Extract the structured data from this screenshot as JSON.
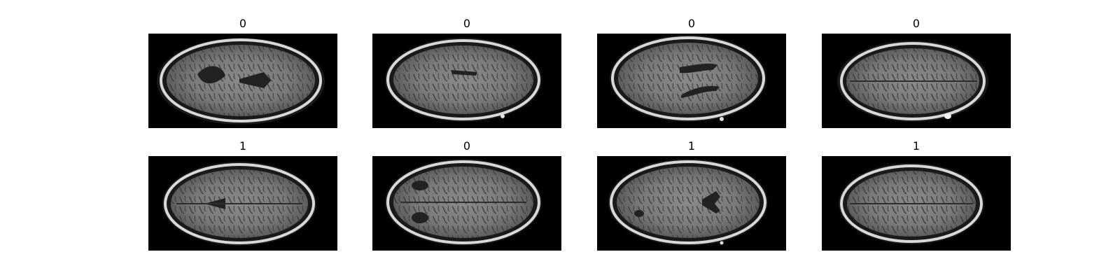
{
  "figure": {
    "panels": [
      {
        "label": "0",
        "image": "axial-brain-mri-slice"
      },
      {
        "label": "0",
        "image": "axial-brain-mri-slice"
      },
      {
        "label": "0",
        "image": "axial-brain-mri-slice"
      },
      {
        "label": "0",
        "image": "axial-brain-mri-slice"
      },
      {
        "label": "1",
        "image": "axial-brain-mri-slice"
      },
      {
        "label": "0",
        "image": "axial-brain-mri-slice"
      },
      {
        "label": "1",
        "image": "axial-brain-mri-slice"
      },
      {
        "label": "1",
        "image": "axial-brain-mri-slice"
      }
    ]
  }
}
